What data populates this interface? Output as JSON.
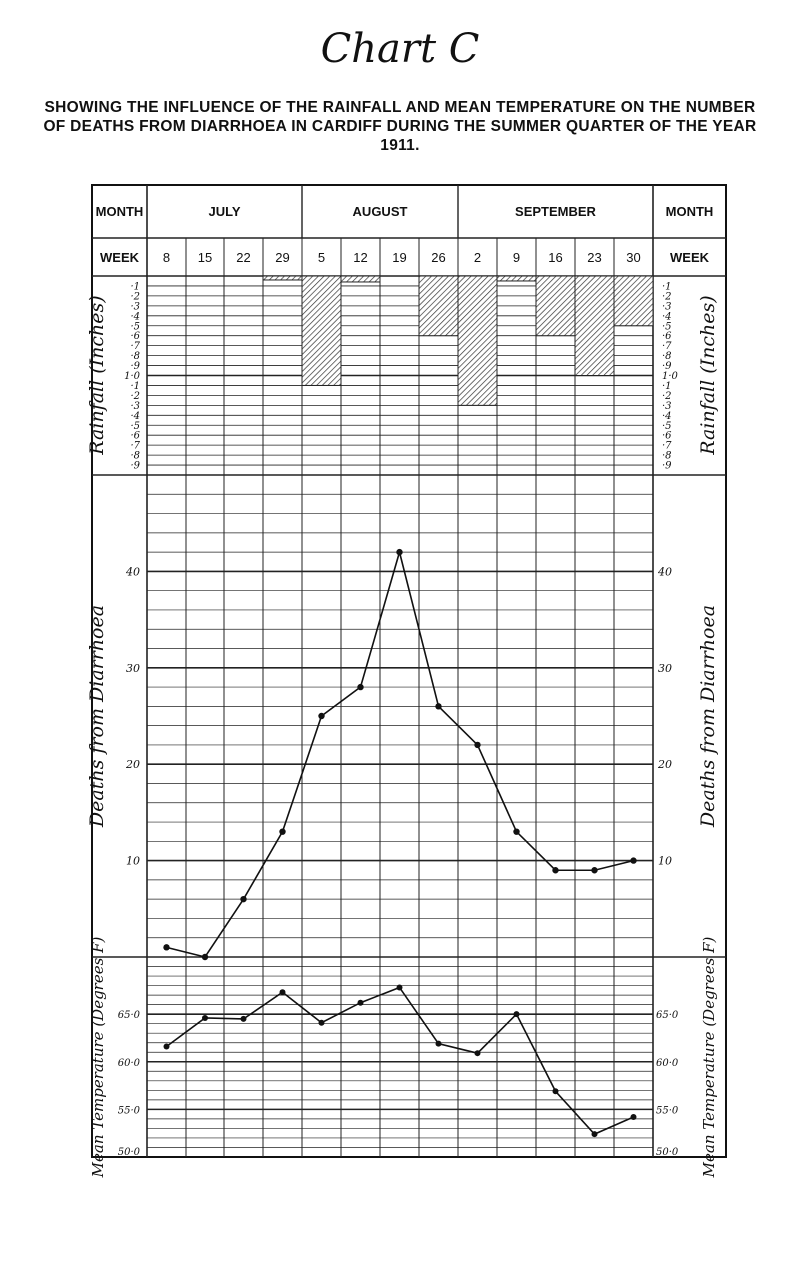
{
  "title": "Chart C",
  "subtitle": "SHOWING THE INFLUENCE OF THE RAINFALL AND MEAN TEMPERATURE ON THE NUMBER OF DEATHS FROM DIARRHOEA IN CARDIFF DURING THE SUMMER QUARTER OF THE YEAR 1911.",
  "header": {
    "month_label": "MONTH",
    "week_label": "WEEK",
    "months": [
      "JULY",
      "AUGUST",
      "SEPTEMBER"
    ]
  },
  "chart_data": [
    {
      "type": "bar",
      "ylabel": "Rainfall (Inches)",
      "categories": [
        "8",
        "15",
        "22",
        "29",
        "5",
        "12",
        "19",
        "26",
        "2",
        "9",
        "16",
        "23",
        "30"
      ],
      "values": [
        0,
        0,
        0,
        0.04,
        1.1,
        0.06,
        0,
        0.6,
        1.3,
        0.05,
        0.6,
        1.0,
        0.5
      ],
      "ylim": [
        0,
        2.0
      ],
      "ticks": [
        "·1",
        "·2",
        "·3",
        "·4",
        "·5",
        "·6",
        "·7",
        "·8",
        "·9",
        "1·0",
        "·1",
        "·2",
        "·3",
        "·4",
        "·5",
        "·6",
        "·7",
        "·8",
        "·9"
      ]
    },
    {
      "type": "line",
      "ylabel": "Deaths from Diarrhoea",
      "categories": [
        "8",
        "15",
        "22",
        "29",
        "5",
        "12",
        "19",
        "26",
        "2",
        "9",
        "16",
        "23",
        "30"
      ],
      "values": [
        1,
        0,
        6,
        13,
        25,
        28,
        42,
        26,
        22,
        13,
        9,
        9,
        10
      ],
      "ylim": [
        0,
        50
      ],
      "ticks": [
        "40",
        "30",
        "20",
        "10"
      ]
    },
    {
      "type": "line",
      "ylabel": "Mean Temperature (Degrees F)",
      "categories": [
        "8",
        "15",
        "22",
        "29",
        "5",
        "12",
        "19",
        "26",
        "2",
        "9",
        "16",
        "23",
        "30"
      ],
      "values": [
        61.6,
        64.6,
        64.5,
        67.3,
        64.1,
        66.2,
        67.8,
        61.9,
        60.9,
        65.0,
        56.9,
        52.4,
        54.2
      ],
      "ylim": [
        50,
        71
      ],
      "ticks": [
        "65·0",
        "60·0",
        "55·0",
        "50·0"
      ]
    }
  ]
}
